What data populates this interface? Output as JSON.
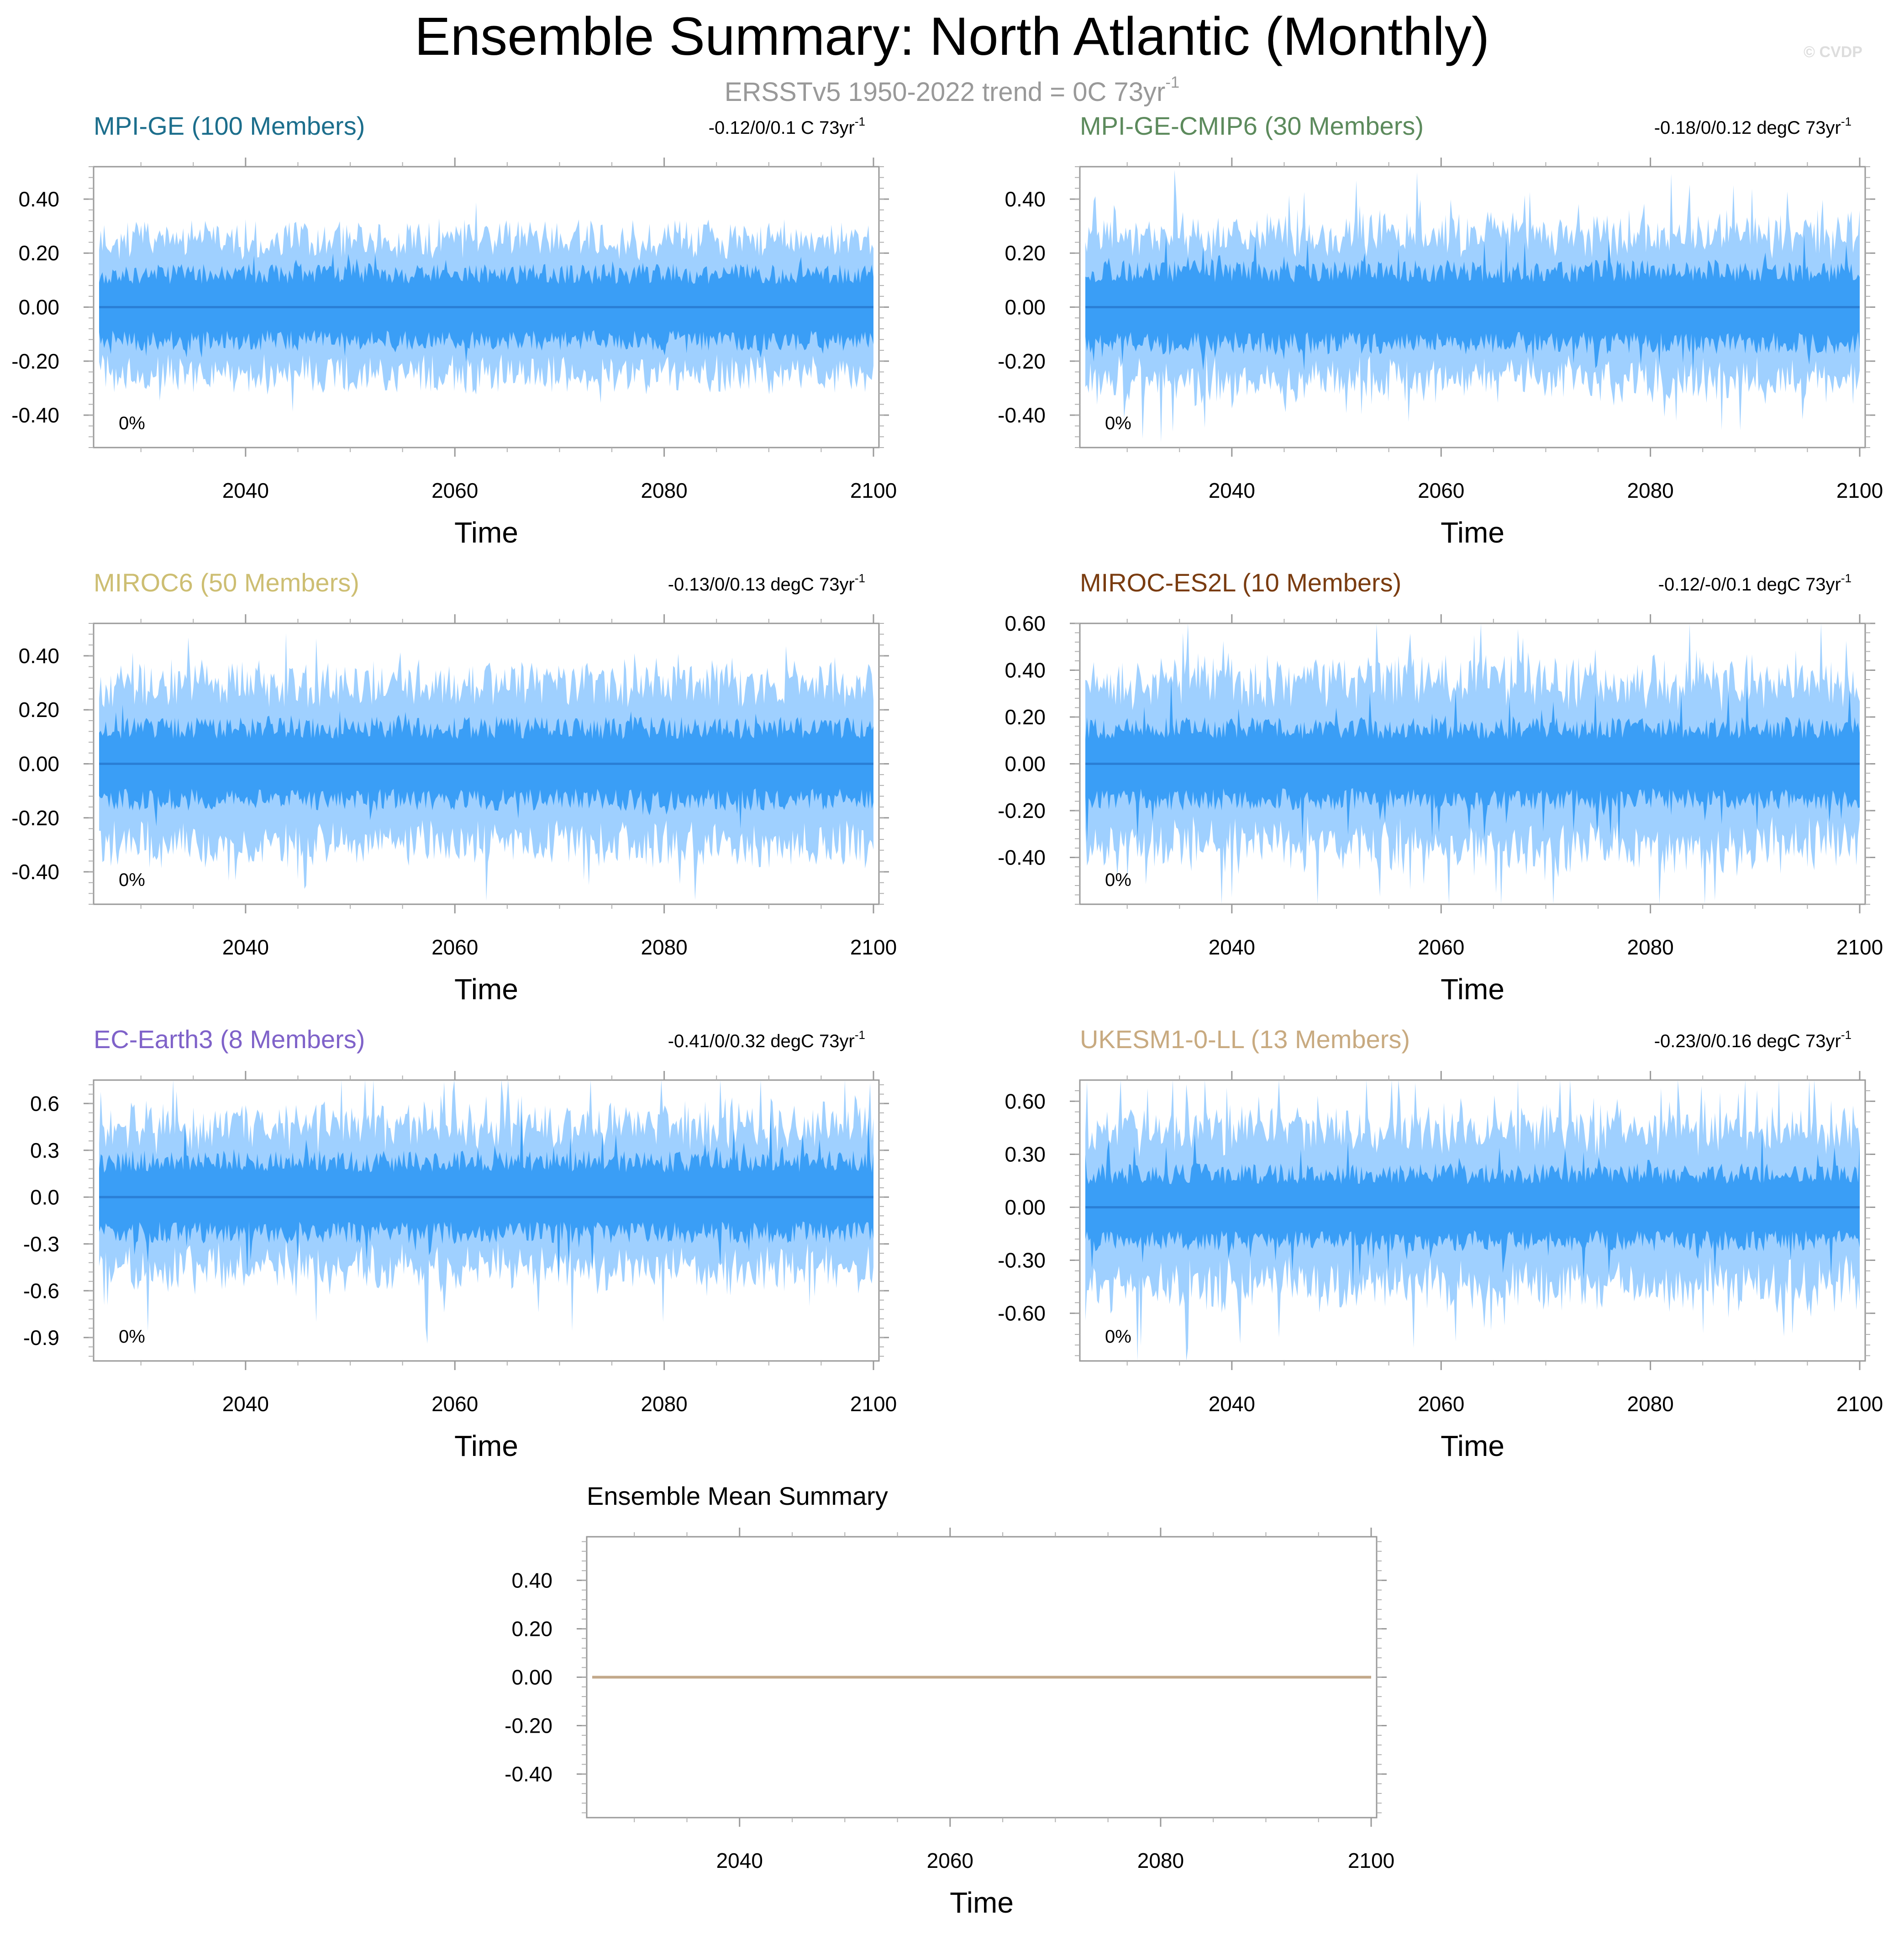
{
  "title": "Ensemble Summary: North Atlantic (Monthly)",
  "subtitle": {
    "text": "ERSSTv5 1950-2022 trend = 0C 73yr",
    "sup": "-1"
  },
  "watermark": "© CVDP",
  "colors": {
    "outer_band": "#9fd0ff",
    "inner_band": "#3a9ef6",
    "mean_line": "#2a7fd6",
    "summary_line": "#c2a88a"
  },
  "chart_data": [
    {
      "type": "area",
      "title": "MPI-GE (100 Members)",
      "title_color": "#1c6e8c",
      "trend": "-0.12/0/0.1 C 73yr",
      "trend_sup": "-1",
      "xlabel": "Time",
      "ylabel": "",
      "xlim": [
        2026,
        2100
      ],
      "ylim": [
        -0.52,
        0.52
      ],
      "xticks": [
        "2040",
        "2060",
        "2080",
        "2100"
      ],
      "yticks": [
        "0.40",
        "0.20",
        "0.00",
        "-0.20",
        "-0.40"
      ],
      "ytick_values": [
        0.4,
        0.2,
        0.0,
        -0.2,
        -0.4
      ],
      "pct_label": "0%",
      "outer_amp": 0.24,
      "inner_amp": 0.13,
      "spike": 0.05,
      "mean": 0.0,
      "seed": 11
    },
    {
      "type": "area",
      "title": "MPI-GE-CMIP6 (30 Members)",
      "title_color": "#5c8a5c",
      "trend": "-0.18/0/0.12 degC 73yr",
      "trend_sup": "-1",
      "xlabel": "Time",
      "ylabel": "",
      "xlim": [
        2026,
        2100
      ],
      "ylim": [
        -0.52,
        0.52
      ],
      "xticks": [
        "2040",
        "2060",
        "2080",
        "2100"
      ],
      "yticks": [
        "0.40",
        "0.20",
        "0.00",
        "-0.20",
        "-0.40"
      ],
      "ytick_values": [
        0.4,
        0.2,
        0.0,
        -0.2,
        -0.4
      ],
      "pct_label": "0%",
      "outer_amp": 0.24,
      "inner_amp": 0.14,
      "spike": 0.12,
      "mean": 0.0,
      "seed": 23
    },
    {
      "type": "area",
      "title": "MIROC6 (50 Members)",
      "title_color": "#cdbe72",
      "trend": "-0.13/0/0.13 degC 73yr",
      "trend_sup": "-1",
      "xlabel": "Time",
      "ylabel": "",
      "xlim": [
        2026,
        2100
      ],
      "ylim": [
        -0.52,
        0.52
      ],
      "xticks": [
        "2040",
        "2060",
        "2080",
        "2100"
      ],
      "yticks": [
        "0.40",
        "0.20",
        "0.00",
        "-0.20",
        "-0.40"
      ],
      "ytick_values": [
        0.4,
        0.2,
        0.0,
        -0.2,
        -0.4
      ],
      "pct_label": "0%",
      "outer_amp": 0.28,
      "inner_amp": 0.14,
      "spike": 0.08,
      "mean": 0.0,
      "seed": 37
    },
    {
      "type": "area",
      "title": "MIROC-ES2L (10 Members)",
      "title_color": "#7a3c10",
      "trend": "-0.12/-0/0.1 degC 73yr",
      "trend_sup": "-1",
      "xlabel": "Time",
      "ylabel": "",
      "xlim": [
        2026,
        2100
      ],
      "ylim": [
        -0.6,
        0.6
      ],
      "xticks": [
        "2040",
        "2060",
        "2080",
        "2100"
      ],
      "yticks": [
        "0.60",
        "0.40",
        "0.20",
        "0.00",
        "-0.20",
        "-0.40"
      ],
      "ytick_values": [
        0.6,
        0.4,
        0.2,
        0.0,
        -0.2,
        -0.4
      ],
      "pct_label": "0%",
      "outer_amp": 0.3,
      "inner_amp": 0.16,
      "spike": 0.2,
      "mean": 0.0,
      "seed": 41
    },
    {
      "type": "area",
      "title": "EC-Earth3 (8 Members)",
      "title_color": "#7f62c9",
      "trend": "-0.41/0/0.32 degC 73yr",
      "trend_sup": "-1",
      "xlabel": "Time",
      "ylabel": "",
      "xlim": [
        2026,
        2100
      ],
      "ylim": [
        -1.05,
        0.75
      ],
      "xticks": [
        "2040",
        "2060",
        "2080",
        "2100"
      ],
      "yticks": [
        "0.6",
        "0.3",
        "0.0",
        "-0.3",
        "-0.6",
        "-0.9"
      ],
      "ytick_values": [
        0.6,
        0.3,
        0.0,
        -0.3,
        -0.6,
        -0.9
      ],
      "pct_label": "0%",
      "outer_amp": 0.38,
      "inner_amp": 0.24,
      "spike": 0.3,
      "mean": 0.0,
      "seed": 53
    },
    {
      "type": "area",
      "title": "UKESM1-0-LL (13 Members)",
      "title_color": "#c8aa80",
      "trend": "-0.23/0/0.16 degC 73yr",
      "trend_sup": "-1",
      "xlabel": "Time",
      "ylabel": "",
      "xlim": [
        2026,
        2100
      ],
      "ylim": [
        -0.87,
        0.72
      ],
      "xticks": [
        "2040",
        "2060",
        "2080",
        "2100"
      ],
      "yticks": [
        "0.60",
        "0.30",
        "0.00",
        "-0.30",
        "-0.60"
      ],
      "ytick_values": [
        0.6,
        0.3,
        0.0,
        -0.3,
        -0.6
      ],
      "pct_label": "0%",
      "outer_amp": 0.38,
      "inner_amp": 0.2,
      "spike": 0.24,
      "mean": 0.0,
      "seed": 67
    },
    {
      "type": "line",
      "title": "Ensemble Mean Summary",
      "title_color": "#000000",
      "trend": "",
      "trend_sup": "",
      "xlabel": "Time",
      "ylabel": "",
      "xlim": [
        2026,
        2100
      ],
      "ylim": [
        -0.58,
        0.58
      ],
      "xticks": [
        "2040",
        "2060",
        "2080",
        "2100"
      ],
      "yticks": [
        "0.40",
        "0.20",
        "0.00",
        "-0.20",
        "-0.40"
      ],
      "ytick_values": [
        0.4,
        0.2,
        0.0,
        -0.2,
        -0.4
      ],
      "pct_label": "",
      "series": [
        {
          "name": "ensemble-mean",
          "x": [
            2026,
            2100
          ],
          "values": [
            0.0,
            0.0
          ]
        }
      ]
    }
  ]
}
